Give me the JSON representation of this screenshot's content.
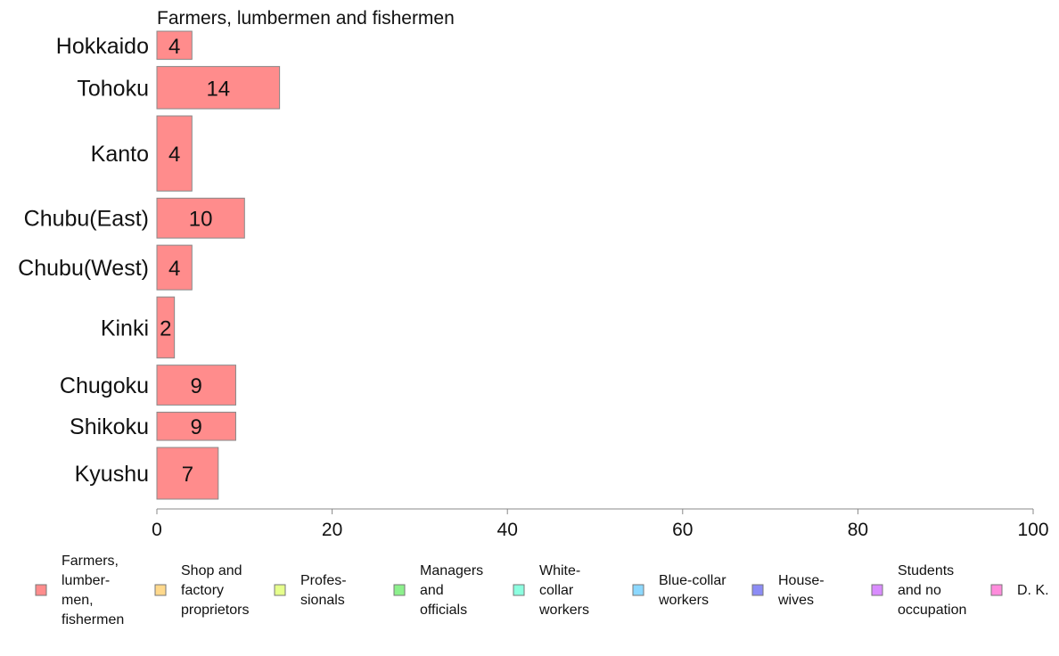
{
  "chart_data": {
    "type": "bar",
    "orientation": "horizontal",
    "title": "Farmers, lumbermen and fishermen",
    "categories": [
      "Hokkaido",
      "Tohoku",
      "Kanto",
      "Chubu(East)",
      "Chubu(West)",
      "Kinki",
      "Chugoku",
      "Shikoku",
      "Kyushu"
    ],
    "category_weights": [
      0.6,
      0.9,
      1.6,
      0.85,
      0.95,
      1.3,
      0.85,
      0.6,
      1.1
    ],
    "values": [
      4,
      14,
      4,
      10,
      4,
      2,
      9,
      9,
      7
    ],
    "value_labels": [
      "4",
      "14",
      "4",
      "10",
      "4",
      "2",
      "9",
      "9",
      "7"
    ],
    "xlim": [
      0,
      100
    ],
    "xticks": [
      0,
      20,
      40,
      60,
      80,
      100
    ],
    "bar_color": "#ff8c8c",
    "bar_stroke": "#888888",
    "grid": false,
    "legend_position": "bottom",
    "legend": [
      {
        "lines": [
          "Farmers,",
          "lumber-",
          "men,",
          "fishermen"
        ],
        "color": "#ff8c8c"
      },
      {
        "lines": [
          "Shop and",
          "factory",
          "proprietors"
        ],
        "color": "#ffd98c"
      },
      {
        "lines": [
          "Profes-",
          "sionals"
        ],
        "color": "#e6ff8c"
      },
      {
        "lines": [
          "Managers",
          "and",
          "officials"
        ],
        "color": "#8cf08c"
      },
      {
        "lines": [
          "White-",
          "collar",
          "workers"
        ],
        "color": "#8cffe0"
      },
      {
        "lines": [
          "Blue-collar",
          "workers"
        ],
        "color": "#8cd8ff"
      },
      {
        "lines": [
          "House-",
          "wives"
        ],
        "color": "#8c8cf5"
      },
      {
        "lines": [
          "Students",
          "and no",
          "occupation"
        ],
        "color": "#d98cff"
      },
      {
        "lines": [
          "D. K."
        ],
        "color": "#ff8cdc"
      }
    ]
  }
}
